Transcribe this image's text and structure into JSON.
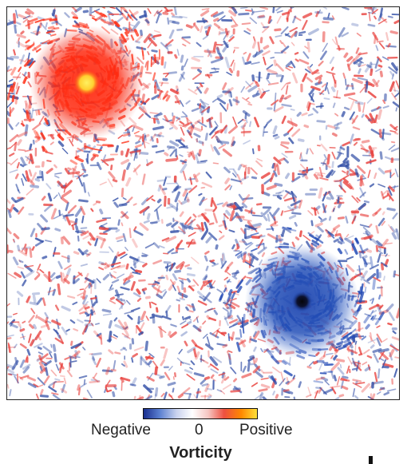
{
  "figure": {
    "colorbar": {
      "negative_label": "Negative",
      "zero_label": "0",
      "positive_label": "Positive",
      "title": "Vorticity",
      "colors": [
        "#1a2f8f",
        "#5a7fd0",
        "#c9d2ee",
        "#ffffff",
        "#f6c6c2",
        "#ee5040",
        "#ff8800",
        "#ffe03a"
      ]
    },
    "colors": {
      "positive_vortex": "#ff2a10",
      "positive_core": "#ffe030",
      "negative_vortex": "#1f47b4",
      "negative_core": "#0a0a14",
      "noise_red": "#e8403c",
      "noise_blue": "#3652a8",
      "panel_border": "#222222"
    }
  }
}
